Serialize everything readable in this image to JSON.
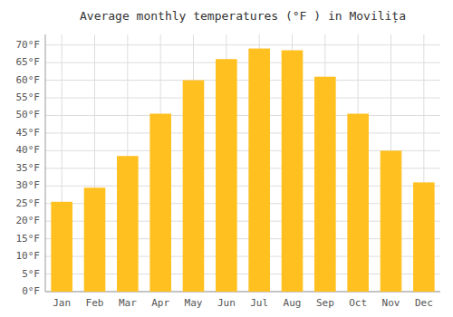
{
  "chart_data": {
    "type": "bar",
    "title": "Average monthly temperatures (°F ) in Movilița",
    "categories": [
      "Jan",
      "Feb",
      "Mar",
      "Apr",
      "May",
      "Jun",
      "Jul",
      "Aug",
      "Sep",
      "Oct",
      "Nov",
      "Dec"
    ],
    "values": [
      25.5,
      29.5,
      38.5,
      50.5,
      60.0,
      66.0,
      69.0,
      68.5,
      61.0,
      50.5,
      40.0,
      31.0
    ],
    "color": "#FFC020",
    "ylim": [
      0,
      73
    ],
    "yticks": [
      {
        "value": 0,
        "label": "0°F"
      },
      {
        "value": 5,
        "label": "5°F"
      },
      {
        "value": 10,
        "label": "10°F"
      },
      {
        "value": 15,
        "label": "15°F"
      },
      {
        "value": 20,
        "label": "20°F"
      },
      {
        "value": 25,
        "label": "25°F"
      },
      {
        "value": 30,
        "label": "30°F"
      },
      {
        "value": 35,
        "label": "35°F"
      },
      {
        "value": 40,
        "label": "40°F"
      },
      {
        "value": 45,
        "label": "45°F"
      },
      {
        "value": 50,
        "label": "50°F"
      },
      {
        "value": 55,
        "label": "55°F"
      },
      {
        "value": 60,
        "label": "60°F"
      },
      {
        "value": 65,
        "label": "65°F"
      },
      {
        "value": 70,
        "label": "70°F"
      }
    ],
    "grid": true
  }
}
